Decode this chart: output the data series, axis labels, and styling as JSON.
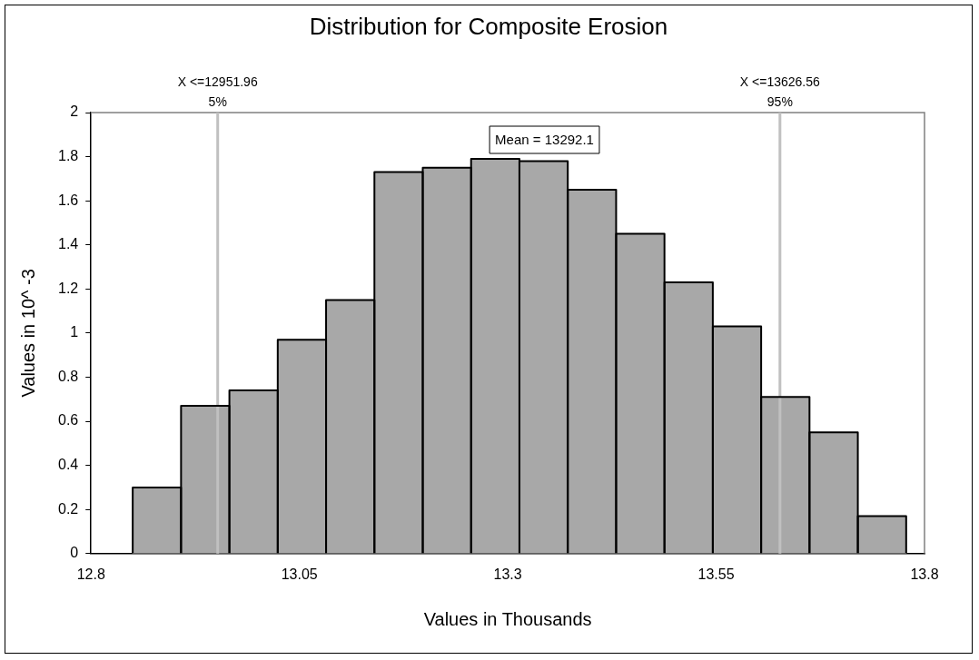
{
  "chart_data": {
    "type": "histogram",
    "title": "Distribution for Composite Erosion",
    "xlabel": "Values in Thousands",
    "ylabel": "Values in 10^ -3",
    "bins": [
      12.85,
      12.908,
      12.966,
      13.024,
      13.082,
      13.14,
      13.198,
      13.256,
      13.314,
      13.372,
      13.43,
      13.488,
      13.546,
      13.604,
      13.662,
      13.72,
      13.778
    ],
    "values": [
      0.3,
      0.67,
      0.74,
      0.97,
      1.15,
      1.73,
      1.75,
      1.79,
      1.78,
      1.65,
      1.45,
      1.23,
      1.03,
      0.71,
      0.55,
      0.17
    ],
    "color": "#a8a8a8",
    "xlim": [
      12.8,
      13.8
    ],
    "xticks": [
      12.8,
      13.05,
      13.3,
      13.55,
      13.8
    ],
    "ylim": [
      0,
      2
    ],
    "yticks": [
      0,
      0.2,
      0.4,
      0.6,
      0.8,
      1,
      1.2,
      1.4,
      1.6,
      1.8,
      2
    ],
    "ref_lines": [
      {
        "axis": "x",
        "value": 12.95196,
        "label": "X <=12951.96\n5%",
        "color": "#c0c0c0"
      },
      {
        "axis": "x",
        "value": 13.62656,
        "label": "X <=13626.56\n95%",
        "color": "#c0c0c0"
      }
    ],
    "annotations": [
      "Mean = 13292.1"
    ],
    "grid": false,
    "legend": false
  }
}
